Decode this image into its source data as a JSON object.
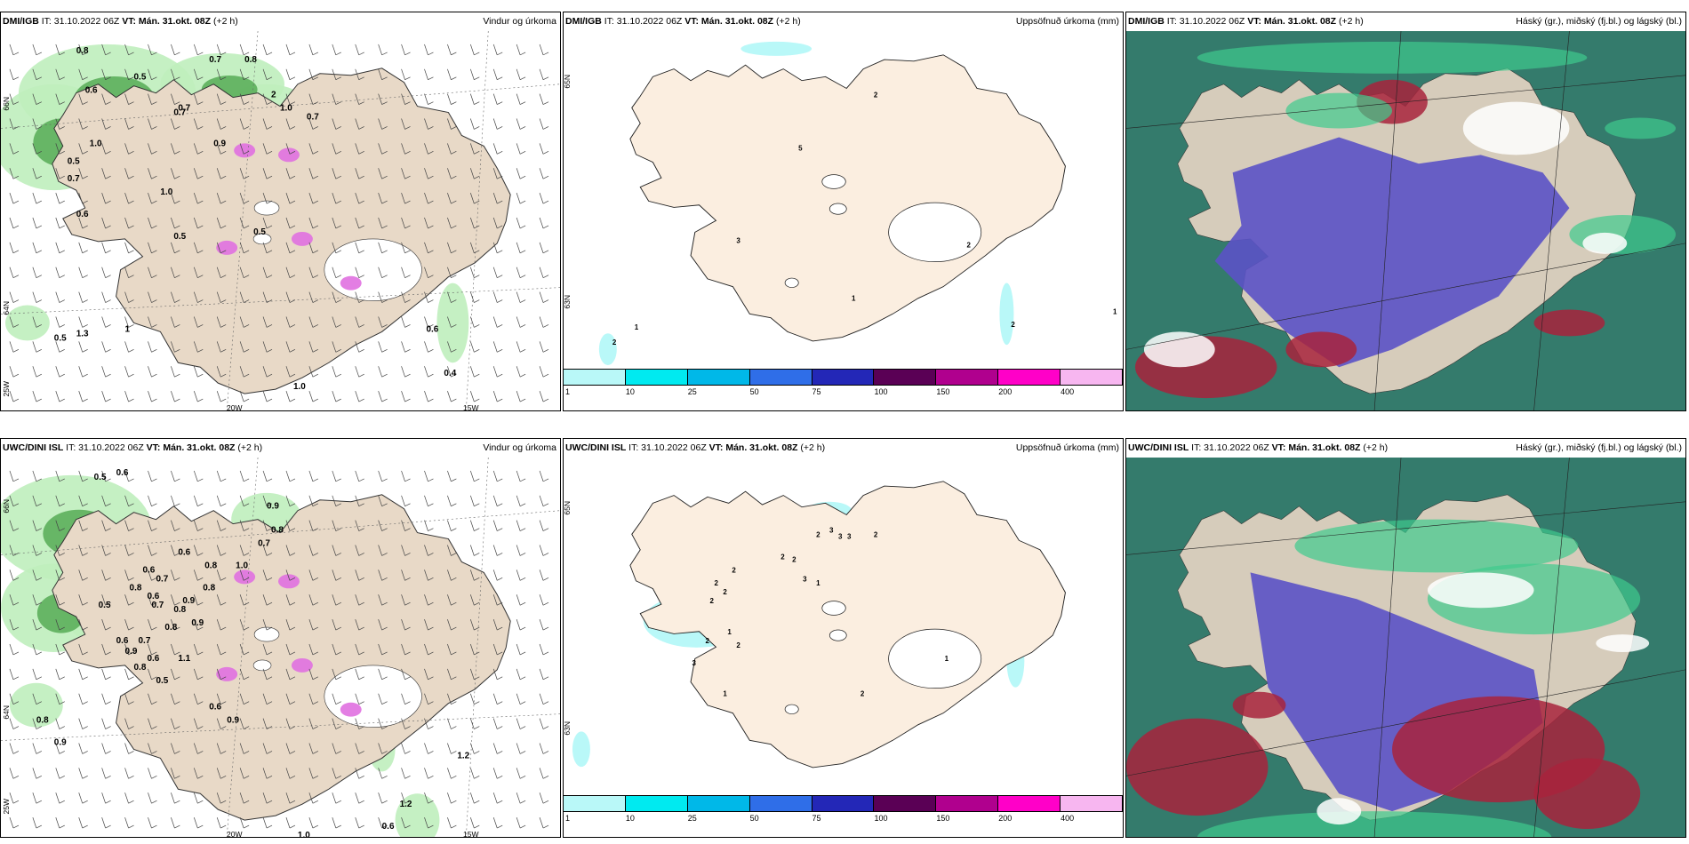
{
  "row_top": {
    "model": "DMI/IGB",
    "it_text": "IT: 31.10.2022 06Z",
    "vt_text": "VT: Mán. 31.okt. 08Z",
    "lead": "(+2 h)"
  },
  "row_bottom": {
    "model": "UWC/DINI ISL",
    "it_text": "IT: 31.10.2022 06Z",
    "vt_text": "VT: Mán. 31.okt. 08Z",
    "lead": "(+2 h)"
  },
  "titles": {
    "wind": "Vindur og úrkoma",
    "precip": "Uppsöfnuð úrkoma (mm)",
    "cloud": "Háský (gr.), miðský (fj.bl.) og lágský (bl.)"
  },
  "axis_labels": {
    "lat66": "66N",
    "lat64": "64N",
    "lat65w": "65N",
    "lat63": "63N",
    "lon20": "20W",
    "lon15": "15W",
    "lat25": "25W"
  },
  "colorbar": {
    "ticks": [
      "1",
      "10",
      "25",
      "50",
      "75",
      "100",
      "150",
      "200",
      "400"
    ],
    "colors": [
      "#b9f8f8",
      "#00eaf0",
      "#00b8e8",
      "#2f6ee8",
      "#2327b7",
      "#5a0055",
      "#b0008e",
      "#ff00c8",
      "#f7b6f0"
    ]
  },
  "top_wind_labels": [
    "0.8",
    "0.7",
    "0.8",
    "0.6",
    "0.5",
    "0.7",
    "1.0",
    "0.7",
    "0.5",
    "0.7",
    "1.0",
    "0.9",
    "0.5",
    "0.5",
    "1.0",
    "0.7",
    "2",
    "0.6",
    "1",
    "1.0",
    "0.6",
    "1.3",
    "0.5",
    "0.4"
  ],
  "bottom_wind_labels": [
    "0.5",
    "0.6",
    "0.9",
    "0.8",
    "0.7",
    "0.6",
    "0.8",
    "0.8",
    "1.0",
    "0.6",
    "0.7",
    "0.8",
    "0.6",
    "0.9",
    "0.7",
    "0.8",
    "0.5",
    "0.9",
    "0.8",
    "0.7",
    "0.6",
    "0.9",
    "0.8",
    "0.6",
    "1.1",
    "0.5",
    "0.6",
    "0.9",
    "0.8",
    "0.9",
    "1.2",
    "1.0",
    "1.2",
    "0.6"
  ],
  "top_precip_labels": [
    "2",
    "5",
    "3",
    "2",
    "2",
    "1",
    "1",
    "2",
    "1"
  ],
  "bottom_precip_labels": [
    "2",
    "3",
    "3",
    "3",
    "2",
    "2",
    "2",
    "3",
    "1",
    "2",
    "2",
    "2",
    "2",
    "1",
    "2",
    "2",
    "3",
    "1",
    "2",
    "1"
  ]
}
